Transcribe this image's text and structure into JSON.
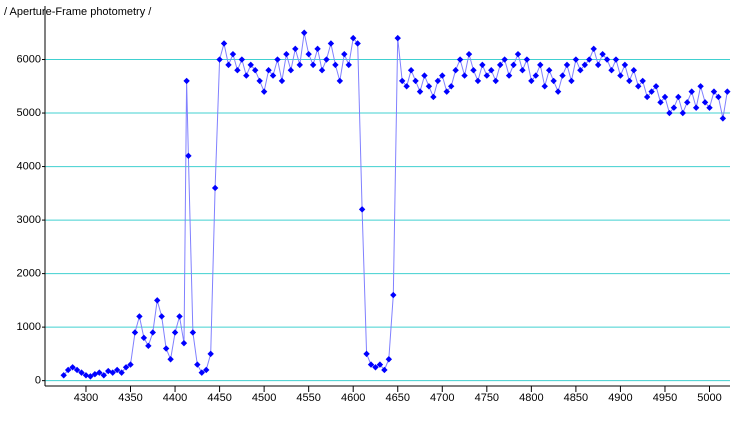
{
  "chart_data": {
    "type": "scatter",
    "title": "/ Aperture-Frame photometry /",
    "x": [
      4275,
      4280,
      4285,
      4290,
      4295,
      4300,
      4305,
      4310,
      4315,
      4320,
      4325,
      4330,
      4335,
      4340,
      4345,
      4350,
      4355,
      4360,
      4365,
      4370,
      4375,
      4380,
      4385,
      4390,
      4395,
      4400,
      4405,
      4410,
      4413,
      4415,
      4420,
      4425,
      4430,
      4435,
      4440,
      4445,
      4450,
      4455,
      4460,
      4465,
      4470,
      4475,
      4480,
      4485,
      4490,
      4495,
      4500,
      4505,
      4510,
      4515,
      4520,
      4525,
      4530,
      4535,
      4540,
      4545,
      4550,
      4555,
      4560,
      4565,
      4570,
      4575,
      4580,
      4585,
      4590,
      4595,
      4600,
      4605,
      4610,
      4615,
      4620,
      4625,
      4630,
      4635,
      4640,
      4645,
      4650,
      4655,
      4660,
      4665,
      4670,
      4675,
      4680,
      4685,
      4690,
      4695,
      4700,
      4705,
      4710,
      4715,
      4720,
      4725,
      4730,
      4735,
      4740,
      4745,
      4750,
      4755,
      4760,
      4765,
      4770,
      4775,
      4780,
      4785,
      4790,
      4795,
      4800,
      4805,
      4810,
      4815,
      4820,
      4825,
      4830,
      4835,
      4840,
      4845,
      4850,
      4855,
      4860,
      4865,
      4870,
      4875,
      4880,
      4885,
      4890,
      4895,
      4900,
      4905,
      4910,
      4915,
      4920,
      4925,
      4930,
      4935,
      4940,
      4945,
      4950,
      4955,
      4960,
      4965,
      4970,
      4975,
      4980,
      4985,
      4990,
      4995,
      5000,
      5005,
      5010,
      5015,
      5020
    ],
    "values": [
      100,
      200,
      250,
      200,
      150,
      100,
      80,
      120,
      150,
      100,
      180,
      150,
      200,
      150,
      250,
      300,
      900,
      1200,
      800,
      650,
      900,
      1500,
      1200,
      600,
      400,
      900,
      1200,
      700,
      5600,
      4200,
      900,
      300,
      150,
      200,
      500,
      3600,
      6000,
      6300,
      5900,
      6100,
      5800,
      6000,
      5700,
      5900,
      5800,
      5600,
      5400,
      5800,
      5700,
      6000,
      5600,
      6100,
      5800,
      6200,
      5900,
      6500,
      6100,
      5900,
      6200,
      5800,
      6000,
      6300,
      5900,
      5600,
      6100,
      5900,
      6400,
      6300,
      3200,
      500,
      300,
      250,
      300,
      200,
      400,
      1600,
      6400,
      5600,
      5500,
      5800,
      5600,
      5400,
      5700,
      5500,
      5300,
      5600,
      5700,
      5400,
      5500,
      5800,
      6000,
      5700,
      6100,
      5800,
      5600,
      5900,
      5700,
      5800,
      5600,
      5900,
      6000,
      5700,
      5900,
      6100,
      5800,
      6000,
      5600,
      5700,
      5900,
      5500,
      5800,
      5600,
      5400,
      5700,
      5900,
      5600,
      6000,
      5800,
      5900,
      6000,
      6200,
      5900,
      6100,
      6000,
      5800,
      6000,
      5700,
      5900,
      5600,
      5800,
      5500,
      5600,
      5300,
      5400,
      5500,
      5200,
      5300,
      5000,
      5100,
      5300,
      5000,
      5200,
      5400,
      5100,
      5500,
      5200,
      5100,
      5400,
      5300,
      4900,
      5400
    ],
    "color": "#0000ff",
    "line_color": "#8080ff",
    "grid_color": "#40d0d0",
    "xlim": [
      4254,
      5023
    ],
    "ylim": [
      -100,
      7000
    ],
    "xticks": [
      4300,
      4350,
      4400,
      4450,
      4500,
      4550,
      4600,
      4650,
      4700,
      4750,
      4800,
      4850,
      4900,
      4950,
      5000
    ],
    "yticks": [
      0,
      1000,
      2000,
      3000,
      4000,
      5000,
      6000
    ],
    "grid": true
  }
}
